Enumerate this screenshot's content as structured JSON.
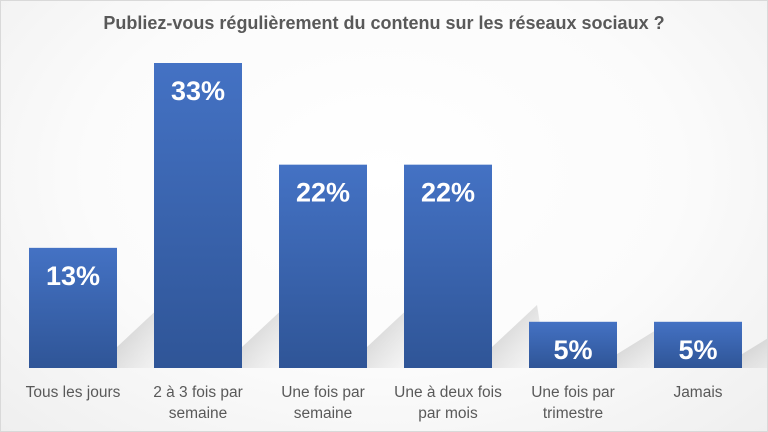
{
  "chart_data": {
    "type": "bar",
    "title": "Publiez-vous régulièrement du contenu sur les réseaux sociaux ?",
    "categories": [
      [
        "Tous les jours"
      ],
      [
        "2 à 3 fois par",
        "semaine"
      ],
      [
        "Une fois par",
        "semaine"
      ],
      [
        "Une à deux fois",
        "par mois"
      ],
      [
        "Une fois par",
        "trimestre"
      ],
      [
        "Jamais"
      ]
    ],
    "values": [
      13,
      33,
      22,
      22,
      5,
      5
    ],
    "data_labels": [
      "13%",
      "33%",
      "22%",
      "22%",
      "5%",
      "5%"
    ],
    "unit": "%",
    "ylim": [
      0,
      33
    ],
    "grid": false,
    "legend": "none",
    "bar_color": "#4472c4",
    "bar_color_dark": "#2f5597"
  }
}
